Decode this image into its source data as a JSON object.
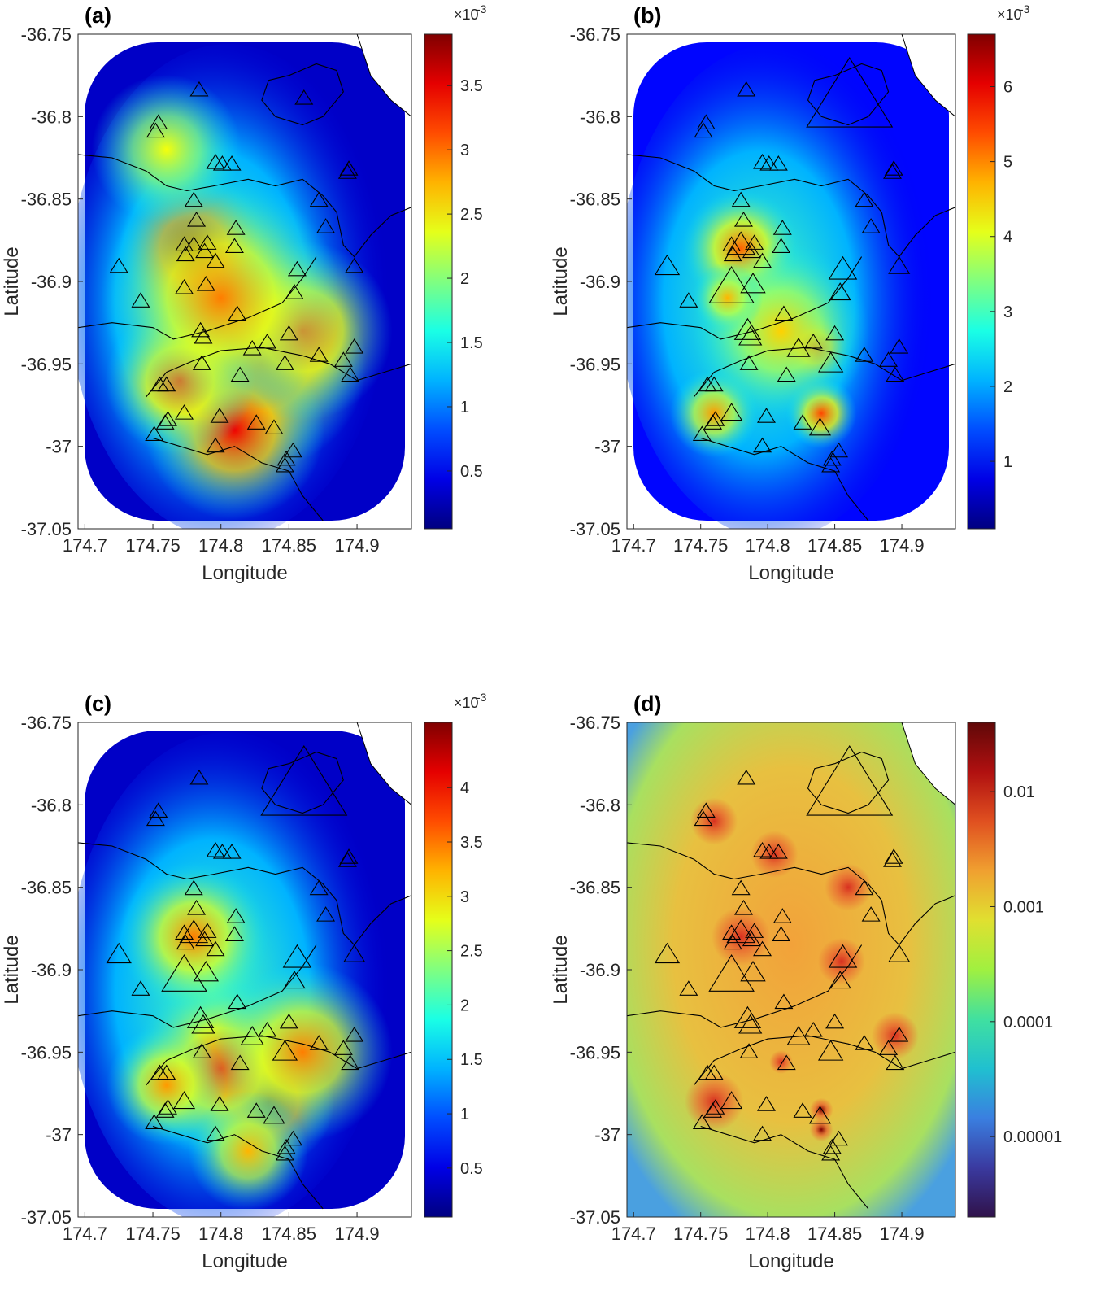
{
  "colors": {
    "jet": [
      "#00007f",
      "#0000ff",
      "#007fff",
      "#00ffff",
      "#7fff7f",
      "#ffff00",
      "#ff7f00",
      "#ff0000",
      "#7f0000"
    ],
    "land": "#ffffff",
    "coast": "#000000",
    "marker": "#000000",
    "axis": "#262626",
    "d_background": "#d8c060"
  },
  "chart_data": [
    {
      "id": "a",
      "type": "heatmap",
      "panel_label": "(a)",
      "xlabel": "Longitude",
      "ylabel": "Latitude",
      "xlim": [
        174.695,
        174.94
      ],
      "ylim": [
        -37.05,
        -36.75
      ],
      "xticks": [
        "174.7",
        "174.75",
        "174.8",
        "174.85",
        "174.9"
      ],
      "yticks": [
        "-36.75",
        "-36.8",
        "-36.85",
        "-36.9",
        "-36.95",
        "-37",
        "-37.05"
      ],
      "colorbar": {
        "min": 0,
        "max": 0.0039,
        "ticks": [
          "0.5",
          "1",
          "1.5",
          "2",
          "2.5",
          "3",
          "3.5"
        ],
        "tick_values": [
          0.5,
          1,
          1.5,
          2,
          2.5,
          3,
          3.5
        ],
        "range_scaled": [
          0.05,
          3.9
        ],
        "multiplier": "×10",
        "exponent": "-3"
      },
      "hotspots": [
        [
          174.78,
          -36.88,
          1.0,
          0.025
        ],
        [
          174.83,
          -36.95,
          0.85,
          0.035
        ],
        [
          174.81,
          -36.99,
          0.8,
          0.03
        ],
        [
          174.77,
          -36.96,
          0.65,
          0.025
        ],
        [
          174.86,
          -36.93,
          0.6,
          0.03
        ],
        [
          174.8,
          -36.91,
          0.55,
          0.04
        ],
        [
          174.76,
          -36.82,
          0.3,
          0.025
        ]
      ],
      "marker_scale": "uniform"
    },
    {
      "id": "b",
      "type": "heatmap",
      "panel_label": "(b)",
      "xlabel": "Longitude",
      "ylabel": "Latitude",
      "xlim": [
        174.695,
        174.94
      ],
      "ylim": [
        -37.05,
        -36.75
      ],
      "xticks": [
        "174.7",
        "174.75",
        "174.8",
        "174.85",
        "174.9"
      ],
      "yticks": [
        "-36.75",
        "-36.8",
        "-36.85",
        "-36.9",
        "-36.95",
        "-37",
        "-37.05"
      ],
      "colorbar": {
        "min": 0,
        "max": 0.0067,
        "ticks": [
          "1",
          "2",
          "3",
          "4",
          "5",
          "6"
        ],
        "tick_values": [
          1,
          2,
          3,
          4,
          5,
          6
        ],
        "range_scaled": [
          0.1,
          6.7
        ],
        "multiplier": "×10",
        "exponent": "-3"
      },
      "hotspots": [
        [
          174.835,
          -36.94,
          0.8,
          0.012
        ],
        [
          174.84,
          -36.98,
          0.65,
          0.012
        ],
        [
          174.78,
          -36.88,
          0.6,
          0.02
        ],
        [
          174.76,
          -36.98,
          0.5,
          0.015
        ],
        [
          174.81,
          -36.93,
          0.4,
          0.03
        ],
        [
          174.77,
          -36.91,
          0.45,
          0.012
        ]
      ],
      "marker_scale": "variable"
    },
    {
      "id": "c",
      "type": "heatmap",
      "panel_label": "(c)",
      "xlabel": "Longitude",
      "ylabel": "Latitude",
      "xlim": [
        174.695,
        174.94
      ],
      "ylim": [
        -37.05,
        -36.75
      ],
      "xticks": [
        "174.7",
        "174.75",
        "174.8",
        "174.85",
        "174.9"
      ],
      "yticks": [
        "-36.75",
        "-36.8",
        "-36.85",
        "-36.9",
        "-36.95",
        "-37",
        "-37.05"
      ],
      "colorbar": {
        "min": 0,
        "max": 0.0046,
        "ticks": [
          "0.5",
          "1",
          "1.5",
          "2",
          "2.5",
          "3",
          "3.5",
          "4"
        ],
        "tick_values": [
          0.5,
          1,
          1.5,
          2,
          2.5,
          3,
          3.5,
          4
        ],
        "range_scaled": [
          0.05,
          4.6
        ],
        "multiplier": "×10",
        "exponent": "-3"
      },
      "hotspots": [
        [
          174.835,
          -36.98,
          1.0,
          0.022
        ],
        [
          174.8,
          -36.96,
          0.65,
          0.03
        ],
        [
          174.86,
          -36.95,
          0.55,
          0.03
        ],
        [
          174.78,
          -36.88,
          0.55,
          0.025
        ],
        [
          174.76,
          -36.97,
          0.5,
          0.02
        ],
        [
          174.82,
          -37.01,
          0.45,
          0.02
        ]
      ],
      "marker_scale": "variable"
    },
    {
      "id": "d",
      "type": "heatmap",
      "panel_label": "(d)",
      "xlabel": "Longitude",
      "ylabel": "Latitude",
      "xlim": [
        174.695,
        174.94
      ],
      "ylim": [
        -37.05,
        -36.75
      ],
      "xticks": [
        "174.7",
        "174.75",
        "174.8",
        "174.85",
        "174.9"
      ],
      "yticks": [
        "-36.75",
        "-36.8",
        "-36.85",
        "-36.9",
        "-36.95",
        "-37",
        "-37.05"
      ],
      "colorbar": {
        "scale": "log",
        "min": 2e-06,
        "max": 0.04,
        "ticks": [
          "0.01",
          "0.001",
          "0.0001",
          "0.00001"
        ],
        "tick_values": [
          0.01,
          0.001,
          0.0001,
          1e-05
        ],
        "range_scaled": [
          2e-06,
          0.04
        ]
      },
      "hotspots": [
        [
          174.84,
          -36.985,
          1.0,
          0.004
        ],
        [
          174.84,
          -36.997,
          0.9,
          0.004
        ],
        [
          174.81,
          -36.956,
          0.85,
          0.004
        ],
        [
          174.805,
          -36.83,
          0.78,
          0.008
        ],
        [
          174.895,
          -36.94,
          0.78,
          0.008
        ],
        [
          174.855,
          -36.895,
          0.75,
          0.008
        ],
        [
          174.78,
          -36.88,
          0.72,
          0.01
        ],
        [
          174.76,
          -36.98,
          0.72,
          0.01
        ],
        [
          174.76,
          -36.81,
          0.7,
          0.008
        ],
        [
          174.86,
          -36.85,
          0.7,
          0.008
        ]
      ],
      "marker_scale": "variable"
    }
  ],
  "stations": [
    [
      174.784,
      -36.784
    ],
    [
      174.861,
      -36.789
    ],
    [
      174.754,
      -36.804
    ],
    [
      174.752,
      -36.809
    ],
    [
      174.796,
      -36.828
    ],
    [
      174.801,
      -36.829
    ],
    [
      174.808,
      -36.829
    ],
    [
      174.894,
      -36.832
    ],
    [
      174.893,
      -36.834
    ],
    [
      174.78,
      -36.851
    ],
    [
      174.872,
      -36.851
    ],
    [
      174.782,
      -36.863
    ],
    [
      174.877,
      -36.867
    ],
    [
      174.811,
      -36.868
    ],
    [
      174.773,
      -36.878
    ],
    [
      174.78,
      -36.878
    ],
    [
      174.79,
      -36.877
    ],
    [
      174.81,
      -36.879
    ],
    [
      174.788,
      -36.882
    ],
    [
      174.774,
      -36.884
    ],
    [
      174.796,
      -36.888
    ],
    [
      174.725,
      -36.891
    ],
    [
      174.856,
      -36.893
    ],
    [
      174.898,
      -36.891
    ],
    [
      174.773,
      -36.904
    ],
    [
      174.789,
      -36.902
    ],
    [
      174.854,
      -36.907
    ],
    [
      174.741,
      -36.912
    ],
    [
      174.812,
      -36.92
    ],
    [
      174.785,
      -36.93
    ],
    [
      174.787,
      -36.934
    ],
    [
      174.85,
      -36.932
    ],
    [
      174.834,
      -36.937
    ],
    [
      174.823,
      -36.941
    ],
    [
      174.898,
      -36.94
    ],
    [
      174.89,
      -36.948
    ],
    [
      174.872,
      -36.945
    ],
    [
      174.847,
      -36.95
    ],
    [
      174.895,
      -36.957
    ],
    [
      174.786,
      -36.95
    ],
    [
      174.814,
      -36.957
    ],
    [
      174.755,
      -36.963
    ],
    [
      174.76,
      -36.963
    ],
    [
      174.773,
      -36.98
    ],
    [
      174.761,
      -36.984
    ],
    [
      174.759,
      -36.986
    ],
    [
      174.751,
      -36.993
    ],
    [
      174.799,
      -36.982
    ],
    [
      174.826,
      -36.986
    ],
    [
      174.839,
      -36.989
    ],
    [
      174.796,
      -37.0
    ],
    [
      174.853,
      -37.003
    ],
    [
      174.848,
      -37.008
    ],
    [
      174.847,
      -37.012
    ]
  ],
  "station_sizes": [
    1,
    5,
    1,
    1,
    1,
    1,
    1,
    1,
    1,
    1,
    1,
    1,
    1,
    1,
    1,
    1.6,
    1,
    1,
    1,
    1,
    1,
    1.4,
    1.6,
    1.2,
    2.6,
    1.4,
    1.2,
    1,
    1,
    1.5,
    1.3,
    1,
    1,
    1.3,
    1,
    1,
    1,
    1.4,
    1,
    1,
    1,
    1,
    1,
    1.2,
    1,
    1,
    1,
    1,
    1,
    1.2,
    1,
    1,
    1,
    1
  ]
}
